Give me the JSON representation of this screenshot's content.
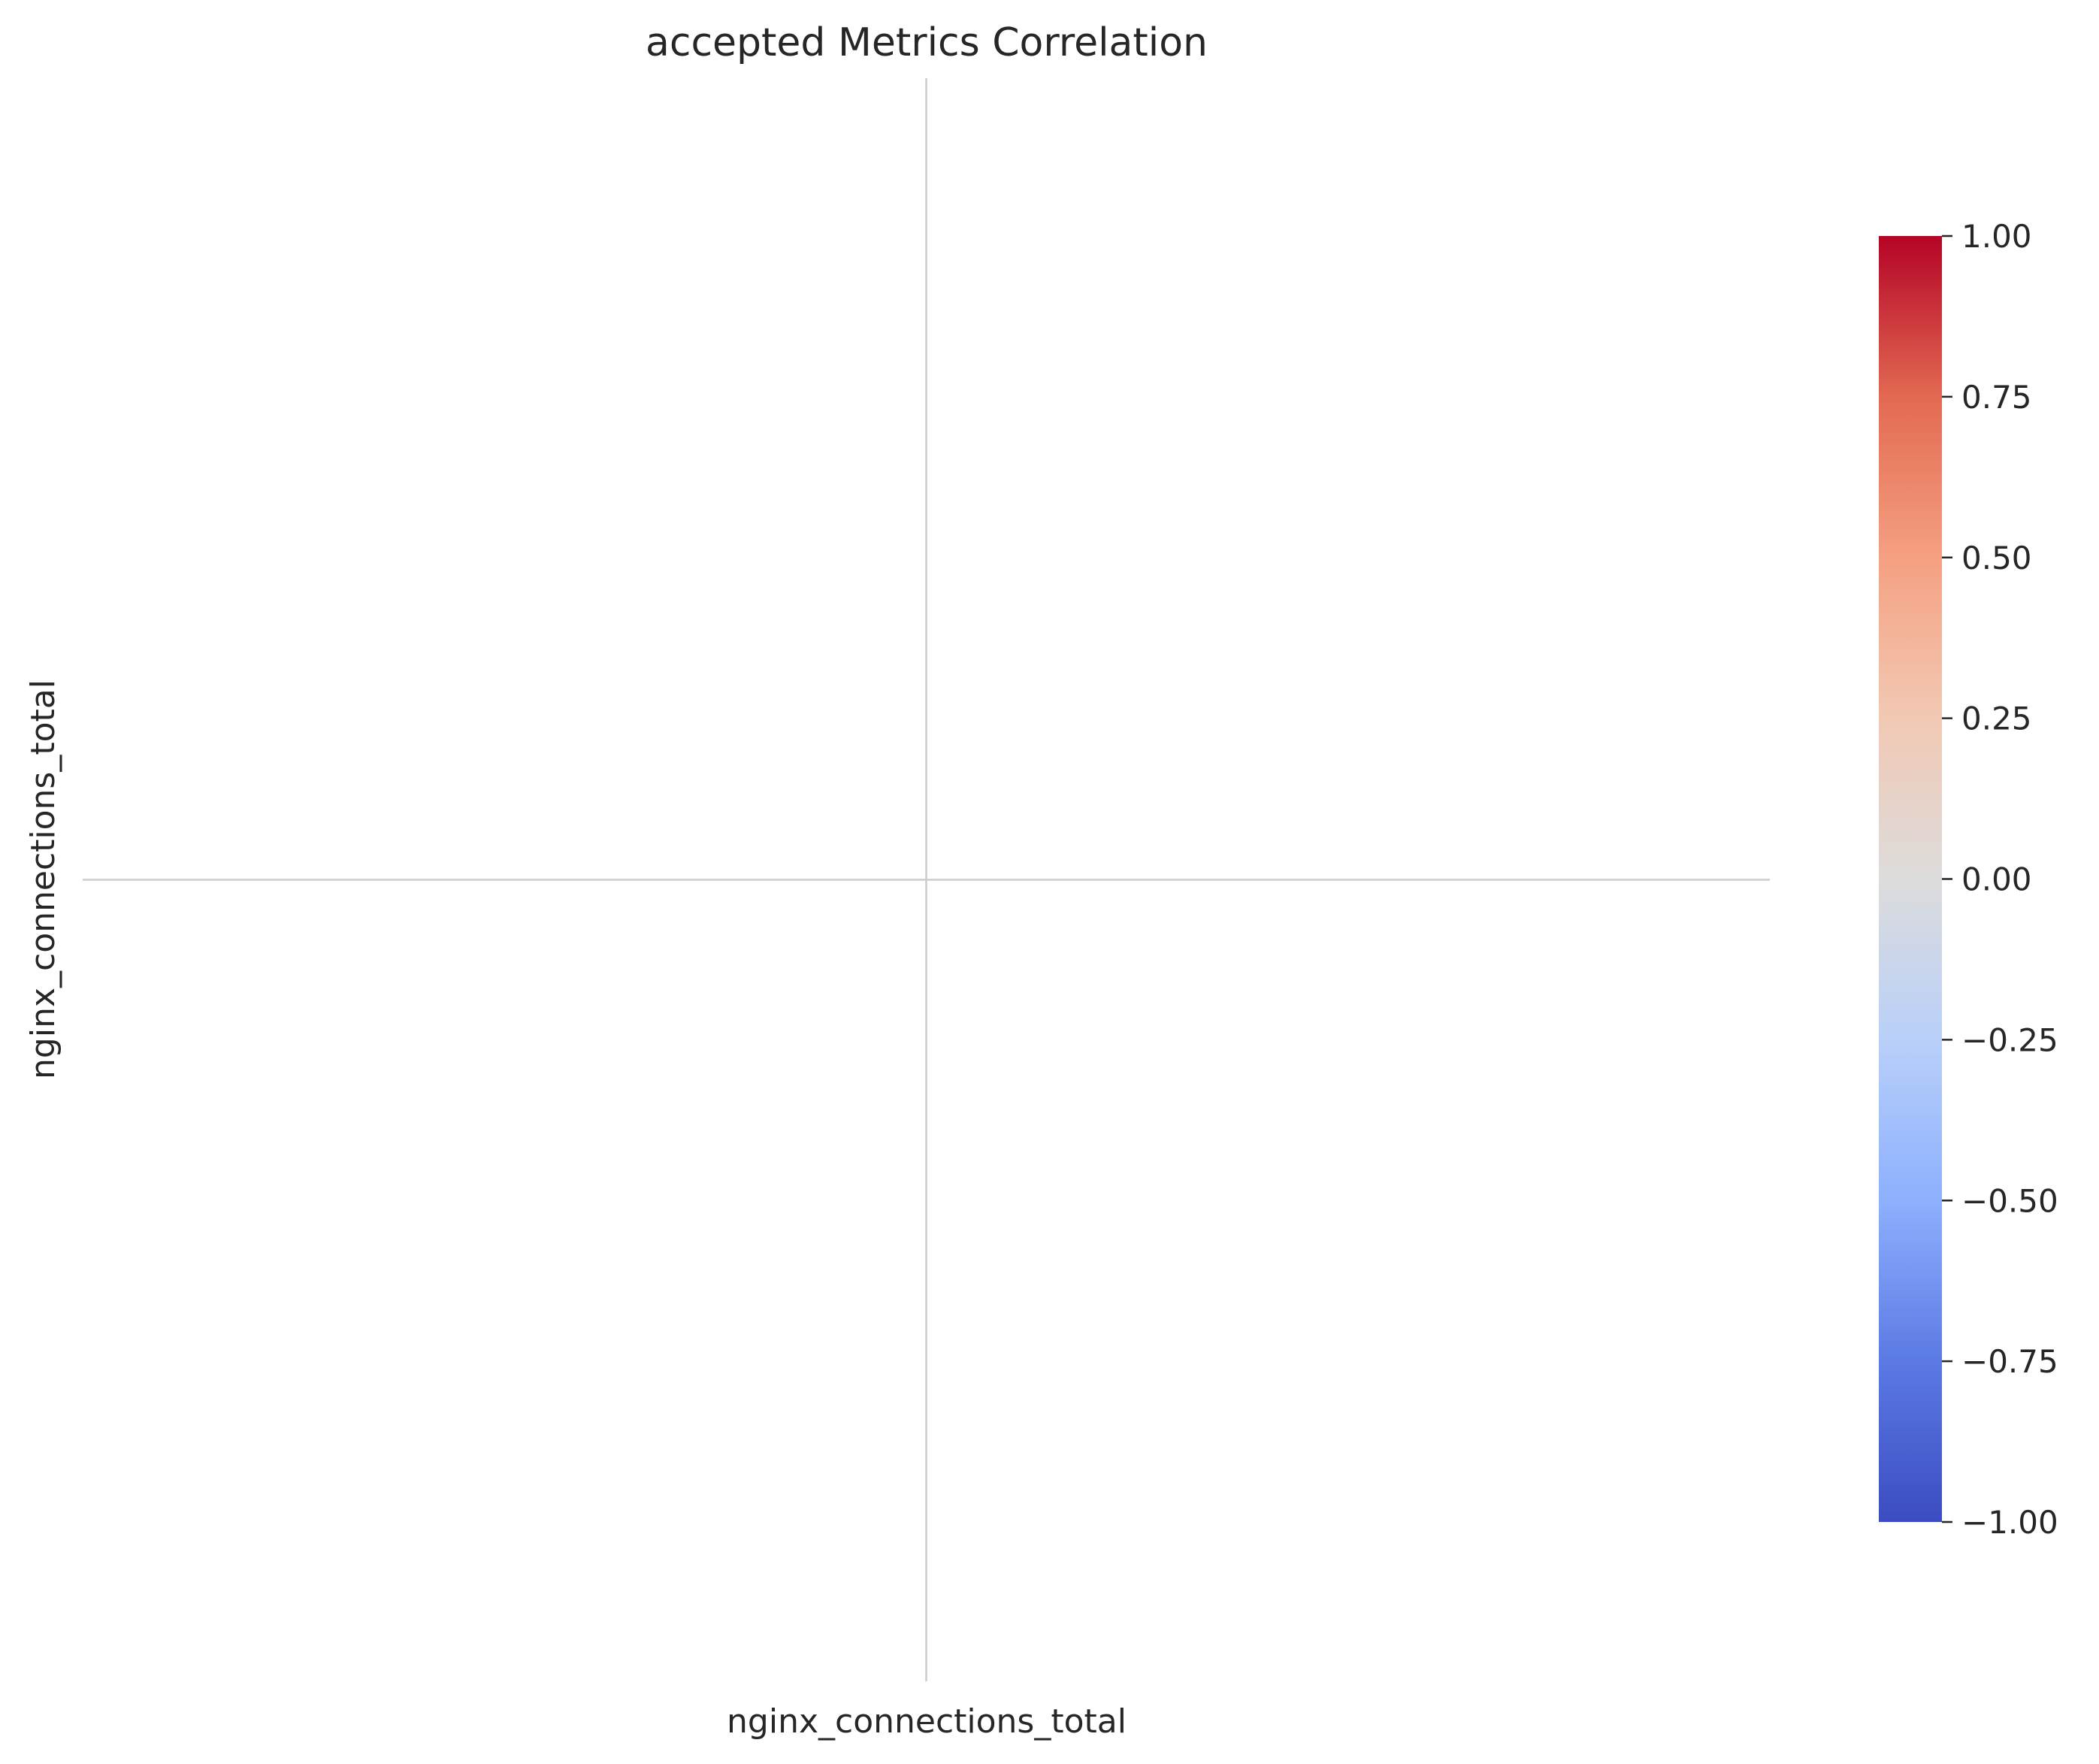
{
  "chart_data": {
    "type": "heatmap",
    "title": "accepted Metrics Correlation",
    "x_categories": [
      "nginx_connections_total"
    ],
    "y_categories": [
      "nginx_connections_total"
    ],
    "values": [
      [
        null
      ]
    ],
    "colorbar": {
      "colormap": "coolwarm",
      "min": -1.0,
      "max": 1.0,
      "ticks": [
        "1.00",
        "0.75",
        "0.50",
        "0.25",
        "0.00",
        "−0.25",
        "−0.50",
        "−0.75",
        "−1.00"
      ],
      "tick_values": [
        1.0,
        0.75,
        0.5,
        0.25,
        0.0,
        -0.25,
        -0.5,
        -0.75,
        -1.0
      ],
      "colors": [
        "#3b4cc0",
        "#5b7ae4",
        "#8db0fe",
        "#b9d0f9",
        "#dddcdc",
        "#f2c9b4",
        "#f5a081",
        "#e26952",
        "#b40426"
      ]
    },
    "grid": true,
    "grid_color": "#cccccc"
  }
}
